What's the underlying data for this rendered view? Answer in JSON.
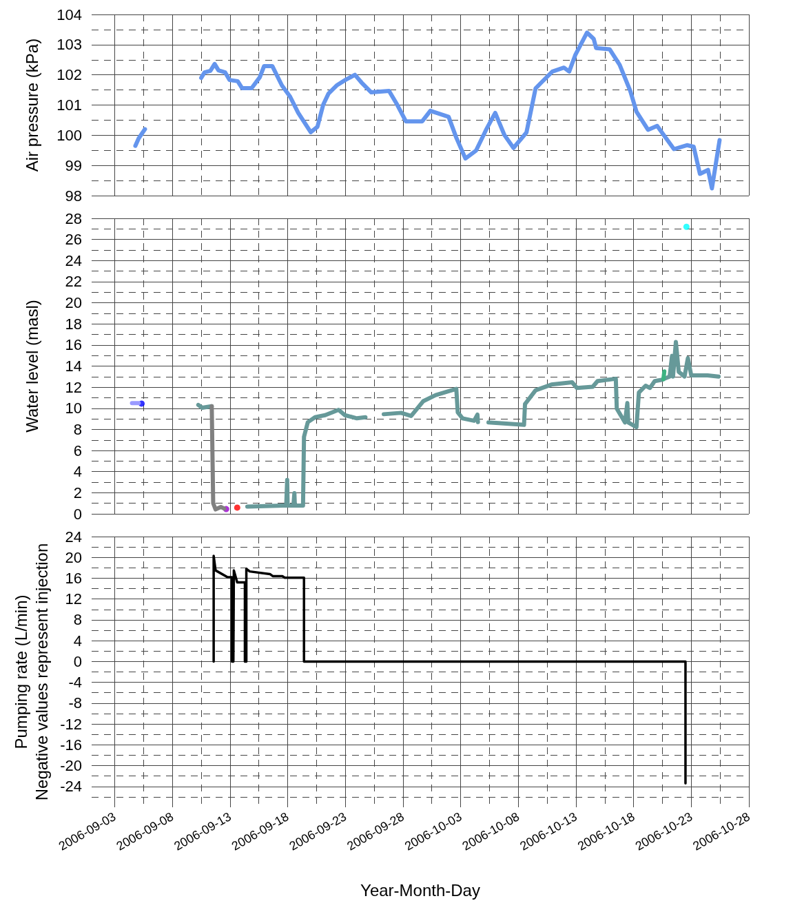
{
  "chart_data": [
    {
      "type": "line",
      "ylabel": "Air pressure (kPa)",
      "xlim": [
        "2006-09-01",
        "2006-10-28"
      ],
      "xticks": [
        "2006-09-03",
        "2006-09-08",
        "2006-09-13",
        "2006-09-18",
        "2006-09-23",
        "2006-09-28",
        "2006-10-03",
        "2006-10-08",
        "2006-10-13",
        "2006-10-18",
        "2006-10-23",
        "2006-10-28"
      ],
      "ylim": [
        98,
        104
      ],
      "yticks": [
        98,
        99,
        100,
        101,
        102,
        103,
        104
      ],
      "grid": true,
      "tick_labels": "y",
      "marker": "none",
      "line_style": "solid",
      "series": [
        {
          "color": "#6495ed",
          "x": [
            "2006-09-04T19:00",
            "2006-09-05T02:00",
            "2006-09-05T15:00",
            "2006-09-08T00:00",
            "2006-09-10T12:00",
            "2006-09-10T19:00",
            "2006-09-11T07:00",
            "2006-09-11T16:00",
            "2006-09-12T00:00",
            "2006-09-12T14:00",
            "2006-09-12T23:00",
            "2006-09-13T16:00",
            "2006-09-14T01:00",
            "2006-09-14T21:00",
            "2006-09-15T14:00",
            "2006-09-15T23:00",
            "2006-09-16T16:00",
            "2006-09-17T12:00",
            "2006-09-18T05:00",
            "2006-09-18T22:00",
            "2006-09-20T00:00",
            "2006-09-20T14:00",
            "2006-09-21T02:00",
            "2006-09-21T13:00",
            "2006-09-22T06:00",
            "2006-09-23T00:00",
            "2006-09-23T20:00",
            "2006-09-24T10:00",
            "2006-09-25T06:00",
            "2006-09-26T19:00",
            "2006-09-27T12:00",
            "2006-09-28T06:00",
            "2006-09-28T23:00",
            "2006-09-29T16:00",
            "2006-09-30T09:00",
            "2006-10-01T23:00",
            "2006-10-02T15:00",
            "2006-10-03T10:00",
            "2006-10-04T08:00",
            "2006-10-05T05:00",
            "2006-10-06T00:00",
            "2006-10-06T19:00",
            "2006-10-07T14:00",
            "2006-10-08T17:00",
            "2006-10-09T12:00",
            "2006-10-09T23:00",
            "2006-10-10T23:00",
            "2006-10-11T23:00",
            "2006-10-12T10:00",
            "2006-10-12T23:00",
            "2006-10-13T23:00",
            "2006-10-14T13:00",
            "2006-10-14T18:00",
            "2006-10-15T22:00",
            "2006-10-16T19:00",
            "2006-10-17T17:00",
            "2006-10-18T06:00",
            "2006-10-19T06:00",
            "2006-10-20T01:00",
            "2006-10-21T12:00",
            "2006-10-22T15:00",
            "2006-10-23T05:00",
            "2006-10-23T18:00",
            "2006-10-24T11:00",
            "2006-10-24T19:00",
            "2006-10-25T11:00"
          ],
          "values": [
            99.65,
            99.9,
            100.2,
            null,
            101.9,
            102.08,
            102.13,
            102.36,
            102.15,
            102.08,
            101.83,
            101.79,
            101.56,
            101.56,
            101.92,
            102.29,
            102.29,
            101.65,
            101.28,
            100.74,
            100.1,
            100.28,
            101.01,
            101.38,
            101.65,
            101.83,
            102.0,
            101.74,
            101.42,
            101.47,
            101.01,
            100.46,
            100.46,
            100.46,
            100.81,
            100.61,
            99.92,
            99.23,
            99.49,
            100.18,
            100.74,
            100.01,
            99.58,
            100.09,
            101.55,
            101.73,
            102.11,
            102.24,
            102.11,
            102.67,
            103.4,
            103.19,
            102.89,
            102.85,
            102.33,
            101.47,
            100.78,
            100.18,
            100.31,
            99.54,
            99.67,
            99.62,
            98.72,
            98.85,
            98.24,
            99.84
          ]
        }
      ]
    },
    {
      "type": "line",
      "ylabel": "Water level (masl)",
      "xlim": [
        "2006-09-01",
        "2006-10-28"
      ],
      "xticks": [
        "2006-09-03",
        "2006-09-08",
        "2006-09-13",
        "2006-09-18",
        "2006-09-23",
        "2006-09-28",
        "2006-10-03",
        "2006-10-08",
        "2006-10-13",
        "2006-10-18",
        "2006-10-23",
        "2006-10-28"
      ],
      "ylim": [
        0,
        28
      ],
      "yticks": [
        0,
        2,
        4,
        6,
        8,
        10,
        12,
        14,
        16,
        18,
        20,
        22,
        24,
        26,
        28
      ],
      "grid": true,
      "tick_labels": "y",
      "marker": "none",
      "line_style": "solid",
      "series": [
        {
          "color": "#9999ff",
          "x": [
            "2006-09-04T12:00",
            "2006-09-05T02:00"
          ],
          "values": [
            10.5,
            10.5
          ]
        },
        {
          "type": "scatter",
          "marker": "circle",
          "color": "#0000ff",
          "x": [
            "2006-09-05T08:00"
          ],
          "values": [
            10.45
          ]
        },
        {
          "color": "#669999",
          "x": [
            "2006-09-10T06:00",
            "2006-09-10T14:00",
            "2006-09-11T10:00",
            "2006-09-12T00:00",
            "2006-09-14T12:00",
            "2006-09-17T15:00",
            "2006-09-17T21:00",
            "2006-09-17T23:00",
            "2006-09-18T00:00",
            "2006-09-18T12:00",
            "2006-09-18T14:00",
            "2006-09-18T15:00",
            "2006-09-19T08:00",
            "2006-09-19T10:00",
            "2006-09-19T18:00",
            "2006-09-20T09:00",
            "2006-09-21T06:00",
            "2006-09-22T10:00",
            "2006-09-22T23:00",
            "2006-09-24T00:00",
            "2006-09-24T18:00",
            "2006-09-25T12:00",
            "2006-09-26T08:00",
            "2006-09-27T20:00",
            "2006-09-28T17:00",
            "2006-09-29T18:00",
            "2006-09-30T20:00",
            "2006-10-01T21:00",
            "2006-10-02T15:00",
            "2006-10-02T18:00",
            "2006-10-03T04:00",
            "2006-10-04T04:00",
            "2006-10-04T11:00",
            "2006-10-04T12:00",
            "2006-10-05T00:00",
            "2006-10-05T10:00",
            "2006-10-08T12:00",
            "2006-10-08T14:00",
            "2006-10-09T12:00",
            "2006-10-10T21:00",
            "2006-10-12T16:00",
            "2006-10-13T02:00",
            "2006-10-14T11:00",
            "2006-10-14T21:00",
            "2006-10-16T11:00",
            "2006-10-16T13:00",
            "2006-10-17T06:00",
            "2006-10-17T11:00",
            "2006-10-17T13:00",
            "2006-10-18T06:00",
            "2006-10-18T11:00",
            "2006-10-19T01:00",
            "2006-10-19T10:00",
            "2006-10-19T20:00",
            "2006-10-20T10:00",
            "2006-10-21T03:00",
            "2006-10-21T08:00",
            "2006-10-21T10:00",
            "2006-10-21T16:00",
            "2006-10-21T22:00",
            "2006-10-22T10:00",
            "2006-10-22T17:00",
            "2006-10-23T00:00",
            "2006-10-24T10:00",
            "2006-10-25T09:00"
          ],
          "values": [
            10.32,
            10.05,
            10.2,
            null,
            0.69,
            0.78,
            0.78,
            3.21,
            0.78,
            0.78,
            1.96,
            0.78,
            0.78,
            7.29,
            8.69,
            9.16,
            9.35,
            9.86,
            9.35,
            9.05,
            9.16,
            null,
            9.44,
            9.57,
            9.27,
            10.67,
            11.25,
            11.6,
            11.84,
            9.62,
            9.05,
            8.82,
            9.4,
            8.69,
            null,
            8.66,
            8.44,
            10.4,
            11.71,
            12.25,
            12.47,
            11.93,
            12.04,
            12.58,
            12.8,
            9.97,
            8.66,
            10.5,
            8.66,
            8.22,
            11.49,
            12.14,
            11.93,
            12.58,
            12.69,
            13.01,
            14.97,
            13.01,
            16.28,
            13.45,
            13.01,
            14.75,
            13.12,
            13.12,
            13.01
          ]
        },
        {
          "color": "#808080",
          "x": [
            "2006-09-11T10:00",
            "2006-09-11T13:00",
            "2006-09-11T18:00",
            "2006-09-12T05:00",
            "2006-09-12T12:00"
          ],
          "values": [
            10.2,
            1.0,
            0.42,
            0.65,
            0.5
          ]
        },
        {
          "type": "scatter",
          "marker": "circle",
          "color": "#9900cc",
          "x": [
            "2006-09-12T16:00"
          ],
          "values": [
            0.45
          ]
        },
        {
          "type": "scatter",
          "marker": "circle",
          "color": "#ff0000",
          "x": [
            "2006-09-13T15:00"
          ],
          "values": [
            0.59
          ]
        },
        {
          "color": "#3cb382",
          "x": [
            "2006-10-20T14:00",
            "2006-10-20T16:00"
          ],
          "values": [
            12.75,
            13.5
          ]
        },
        {
          "type": "scatter",
          "marker": "circle",
          "color": "#00ffff",
          "x": [
            "2006-10-22T14:00"
          ],
          "values": [
            27.2
          ]
        }
      ]
    },
    {
      "type": "line",
      "xlabel": "Year-Month-Day",
      "ylabel": "Pumping rate (L/min)\nNegative values represent injection",
      "xlim": [
        "2006-09-01",
        "2006-10-28"
      ],
      "xticks": [
        "2006-09-03",
        "2006-09-08",
        "2006-09-13",
        "2006-09-18",
        "2006-09-23",
        "2006-09-28",
        "2006-10-03",
        "2006-10-08",
        "2006-10-13",
        "2006-10-18",
        "2006-10-23",
        "2006-10-28"
      ],
      "ylim": [
        -28,
        24
      ],
      "yticks": [
        -24,
        -20,
        -16,
        -12,
        -8,
        -4,
        0,
        4,
        8,
        12,
        16,
        20,
        24
      ],
      "grid": true,
      "marker": "none",
      "line_style": "solid",
      "series": [
        {
          "color": "#000000",
          "x": [
            "2006-09-11T14:00",
            "2006-09-11T14:00",
            "2006-09-11T18:00",
            "2006-09-12T19:00",
            "2006-09-13T04:00",
            "2006-09-13T04:00",
            "2006-09-13T07:00",
            "2006-09-13T08:00",
            "2006-09-13T15:00",
            "2006-09-14T07:00",
            "2006-09-14T07:00",
            "2006-09-14T10:00",
            "2006-09-14T10:00",
            "2006-09-14T17:00",
            "2006-09-16T11:00",
            "2006-09-16T17:00",
            "2006-09-17T13:00",
            "2006-09-17T18:00",
            "2006-09-19T10:00",
            "2006-09-19T10:00",
            "2006-10-22T12:00",
            "2006-10-22T12:00"
          ],
          "values": [
            0,
            20.3,
            17.5,
            16.2,
            16.2,
            0,
            0,
            17.5,
            15.2,
            15.2,
            0,
            0,
            17.8,
            17.3,
            16.8,
            16.4,
            16.4,
            16.1,
            16.1,
            0,
            0,
            -23.4
          ]
        }
      ]
    }
  ]
}
